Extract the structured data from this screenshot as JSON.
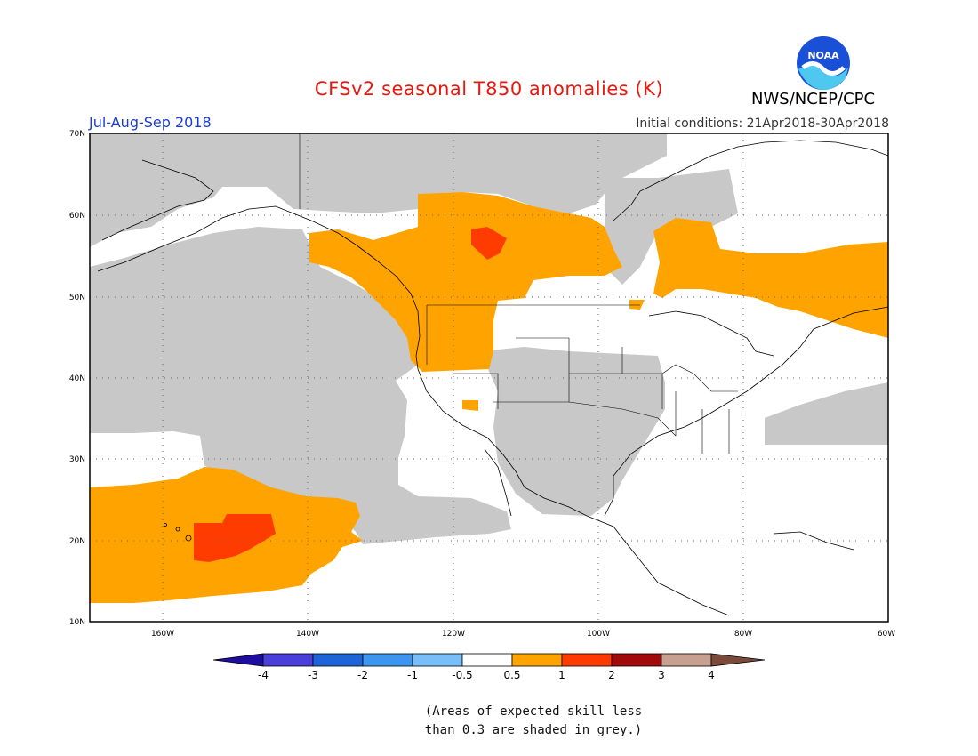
{
  "header": {
    "title": "CFSv2 seasonal T850 anomalies (K)",
    "agency": "NWS/NCEP/CPC",
    "logo_text": "NOAA",
    "period": "Jul-Aug-Sep 2018",
    "initial_conditions": "Initial conditions: 21Apr2018-30Apr2018"
  },
  "map": {
    "lat_labels": [
      "70N",
      "60N",
      "50N",
      "40N",
      "30N",
      "20N",
      "10N"
    ],
    "lon_labels": [
      "160W",
      "140W",
      "120W",
      "100W",
      "80W",
      "60W"
    ],
    "colors": {
      "ocean_default": "#ffffff",
      "low_skill": "#c8c8c8",
      "warm_0_5_1": "#ffa300",
      "warm_1_2": "#ff3c00",
      "coast": "#000000"
    }
  },
  "colorbar": {
    "labels": [
      "-4",
      "-3",
      "-2",
      "-1",
      "-0.5",
      "0.5",
      "1",
      "2",
      "3",
      "4"
    ],
    "colors": [
      "#1e0ea0",
      "#4a3fd8",
      "#1e64d8",
      "#3c96f0",
      "#78bef8",
      "#ffffff",
      "#ffa300",
      "#ff3c00",
      "#a00a0a",
      "#c8a090",
      "#7a4a3a"
    ]
  },
  "note": {
    "line1": "(Areas of expected skill less",
    "line2": "than 0.3 are shaded in grey.)"
  }
}
